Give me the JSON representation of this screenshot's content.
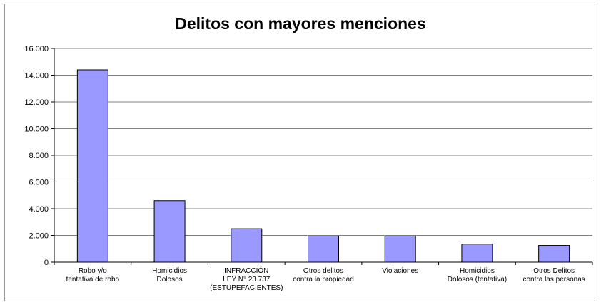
{
  "chart_data": {
    "type": "bar",
    "title": "Delitos con mayores menciones",
    "xlabel": "",
    "ylabel": "",
    "ylim": [
      0,
      16000
    ],
    "yticks": [
      "0",
      "2.000",
      "4.000",
      "6.000",
      "8.000",
      "10.000",
      "12.000",
      "14.000",
      "16.000"
    ],
    "grid": true,
    "legend": "none",
    "bar_color": "#9999ff",
    "categories": [
      [
        "Robo y/o",
        "tentativa de robo"
      ],
      [
        "Homicidios",
        "Dolosos"
      ],
      [
        "INFRACCIÓN",
        "LEY N° 23.737",
        "(ESTUPEFACIENTES)"
      ],
      [
        "Otros delitos",
        "contra la propiedad"
      ],
      [
        "Violaciones"
      ],
      [
        "Homicidios",
        "Dolosos (tentativa)"
      ],
      [
        "Otros Delitos",
        "contra las personas"
      ]
    ],
    "values": [
      14400,
      4600,
      2500,
      1950,
      1950,
      1350,
      1250
    ]
  }
}
